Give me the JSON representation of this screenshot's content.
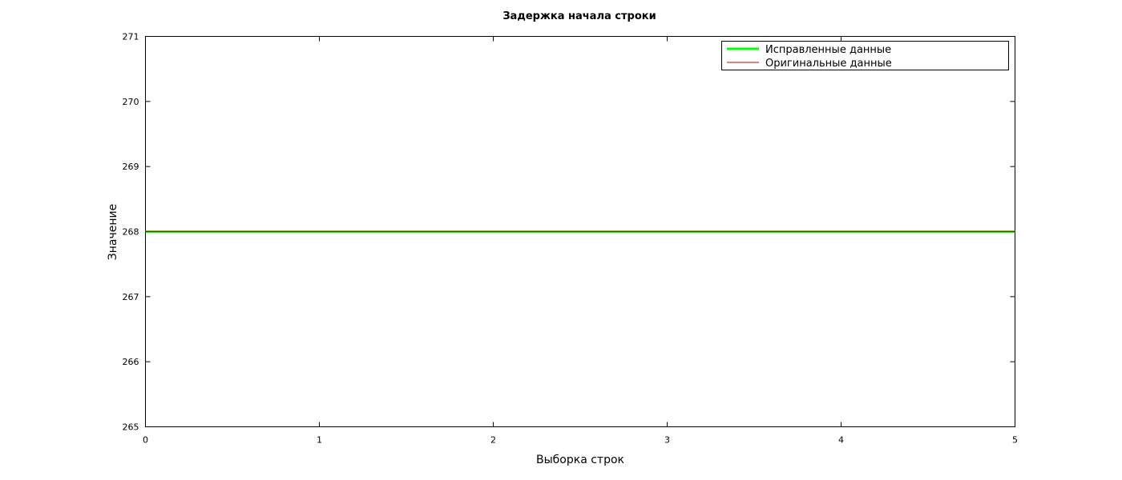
{
  "chart_data": {
    "type": "line",
    "title": "Задержка начала строки",
    "xlabel": "Выборка строк",
    "ylabel": "Значение",
    "xlim": [
      0,
      5
    ],
    "ylim": [
      265,
      271
    ],
    "x_ticks": [
      0,
      1,
      2,
      3,
      4,
      5
    ],
    "y_ticks": [
      265,
      266,
      267,
      268,
      269,
      270,
      271
    ],
    "grid": false,
    "legend_position": "top-right",
    "series": [
      {
        "name": "Исправленные данные",
        "color": "#00ff00",
        "x": [
          0,
          5
        ],
        "y": [
          268,
          268
        ]
      },
      {
        "name": "Оригинальные данные",
        "color": "#cc0000",
        "x": [
          0,
          5
        ],
        "y": [
          268,
          268
        ]
      }
    ]
  }
}
